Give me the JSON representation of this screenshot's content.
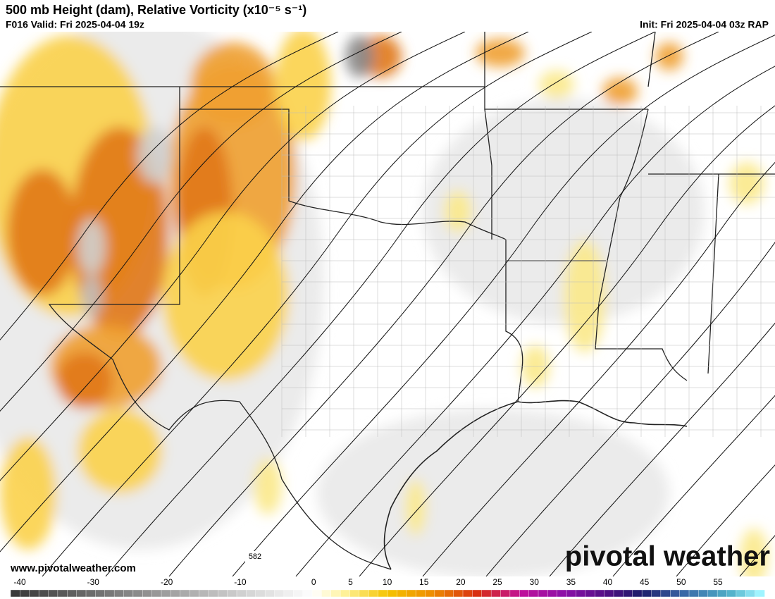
{
  "header": {
    "title": "500 mb Height (dam), Relative Vorticity (x10⁻⁵ s⁻¹)",
    "valid": "F016 Valid: Fri 2025-04-04 19z",
    "init": "Init: Fri 2025-04-04 03z RAP"
  },
  "map": {
    "contour_label": "582"
  },
  "footer": {
    "website": "www.pivotalweather.com",
    "logo": "pivotal weather"
  },
  "colorbar": {
    "ticks": [
      -40,
      -30,
      -20,
      -10,
      0,
      5,
      10,
      15,
      20,
      25,
      30,
      35,
      40,
      45,
      50,
      55
    ]
  }
}
